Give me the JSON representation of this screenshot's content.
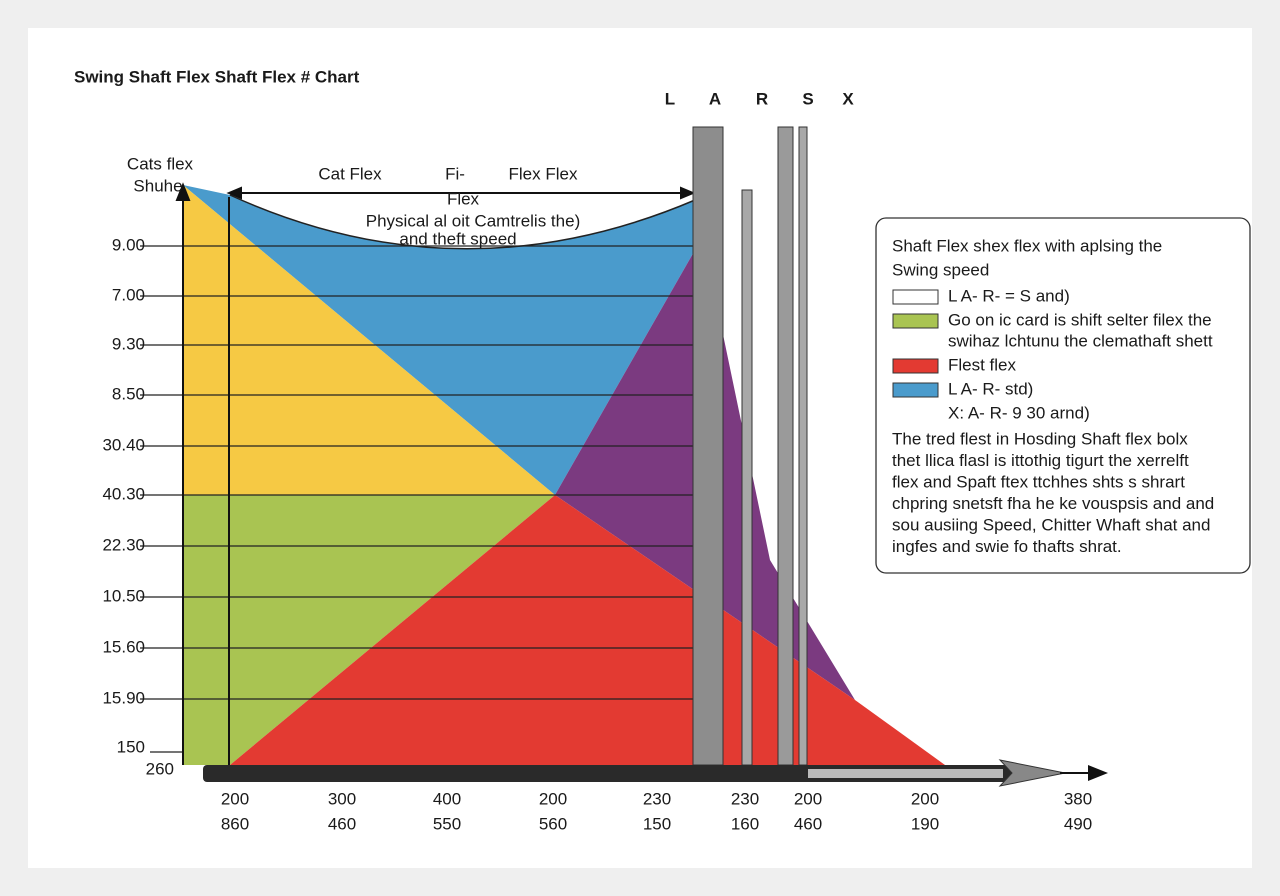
{
  "title": "Swing Shaft Flex Shaft Flex # Chart",
  "flex_letters": [
    "L",
    "A",
    "R",
    "S",
    "X"
  ],
  "annotations": {
    "left_top": [
      "Cats flex",
      "Shuhe"
    ],
    "cat_flex": "Cat Flex",
    "fi": "Fi-",
    "flex": "Flex",
    "flex_flex": "Flex Flex",
    "curve_note": [
      "Physical al oit Camtrelis the)",
      "and theft speed"
    ]
  },
  "y_labels": [
    "9.00",
    "7.00",
    "9.30",
    "8.50",
    "30.40",
    "40.30",
    "22.30",
    "10.50",
    "15.60",
    "15.90",
    "150",
    "260"
  ],
  "x_labels_top": [
    "200",
    "300",
    "400",
    "200",
    "230",
    "230",
    "200",
    "200",
    "380"
  ],
  "x_labels_bottom": [
    "860",
    "460",
    "550",
    "560",
    "150",
    "160",
    "460",
    "190",
    "490"
  ],
  "legend": {
    "title": [
      "Shaft Flex shex flex with aplsing the",
      "Swing speed"
    ],
    "entries": [
      [
        "L  A- R- = S  and)"
      ],
      [
        "Go on ic card is shift selter filex the",
        "swihaz lchtunu the clemathaft shett"
      ],
      [
        "Flest flex"
      ],
      [
        "L  A- R- std)"
      ],
      [
        "X: A- R- 9 30 arnd)"
      ]
    ],
    "paragraph": [
      "The tred flest in Hosding Shaft flex bolx",
      "thet llica flasl is ittothig tigurt the xerrelft",
      "flex and Spaft ftex ttchhes shts s shrart",
      "chpring snetsft fha he ke vouspsis and and",
      "sou ausiing Speed, Chitter Whaft shat and",
      "ingfes and swie fo thafts shrat."
    ]
  }
}
